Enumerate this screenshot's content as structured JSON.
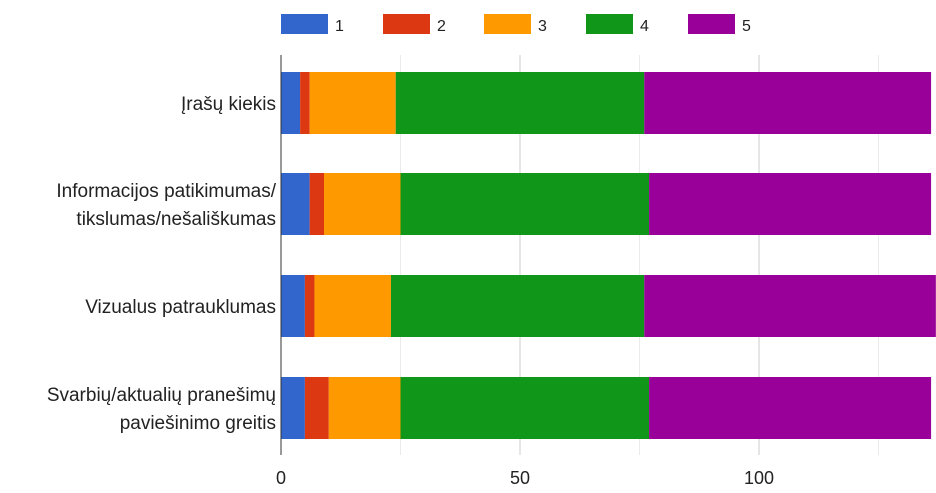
{
  "chart_data": {
    "type": "bar",
    "orientation": "horizontal",
    "stacked": true,
    "categories": [
      [
        "Įrašų kiekis"
      ],
      [
        "Informacijos patikimumas/",
        "tikslumas/nešališkumas"
      ],
      [
        "Vizualus patrauklumas"
      ],
      [
        "Svarbių/aktualių pranešimų",
        "paviešinimo greitis"
      ]
    ],
    "series": [
      {
        "name": "1",
        "color": "#3366cc",
        "values": [
          4,
          6,
          5,
          5
        ]
      },
      {
        "name": "2",
        "color": "#dc3912",
        "values": [
          2,
          3,
          2,
          5
        ]
      },
      {
        "name": "3",
        "color": "#ff9900",
        "values": [
          18,
          16,
          16,
          15
        ]
      },
      {
        "name": "4",
        "color": "#109618",
        "values": [
          52,
          52,
          53,
          52
        ]
      },
      {
        "name": "5",
        "color": "#990099",
        "values": [
          60,
          59,
          61,
          59
        ]
      }
    ],
    "xticks": [
      0,
      50,
      100
    ],
    "xlim": [
      0,
      135
    ],
    "grid": true,
    "legend_position": "top"
  }
}
